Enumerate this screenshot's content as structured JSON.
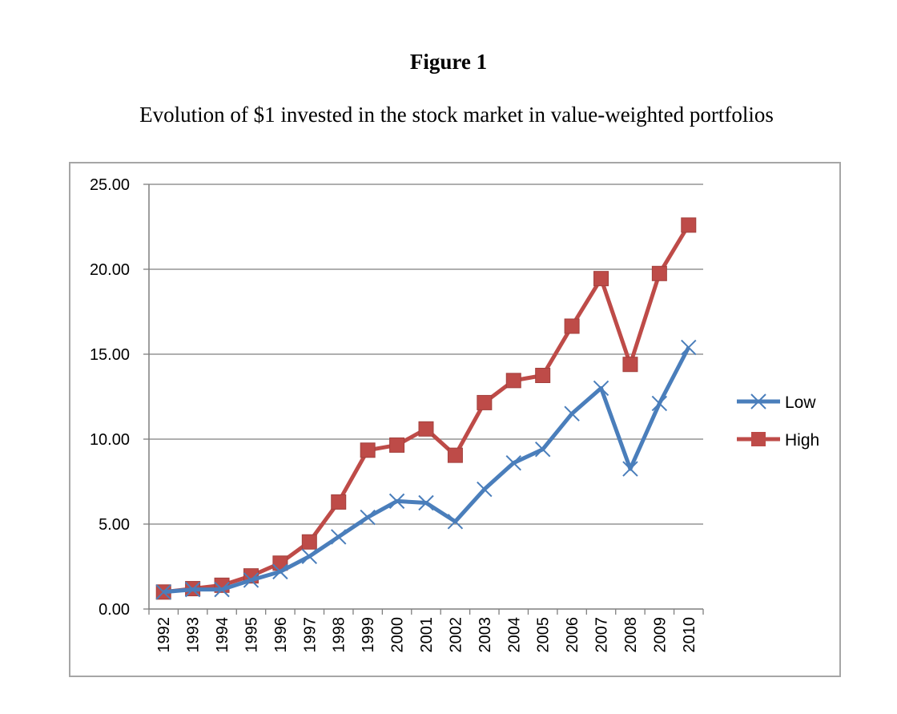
{
  "figure": {
    "title": "Figure 1",
    "subtitle": "Evolution of $1 invested in the stock market in value-weighted portfolios"
  },
  "chart_data": {
    "type": "line",
    "title": "Evolution of $1 invested in the stock market in value-weighted portfolios",
    "xlabel": "",
    "ylabel": "",
    "categories": [
      "1992",
      "1993",
      "1994",
      "1995",
      "1996",
      "1997",
      "1998",
      "1999",
      "2000",
      "2001",
      "2002",
      "2003",
      "2004",
      "2005",
      "2006",
      "2007",
      "2008",
      "2009",
      "2010"
    ],
    "ylim": [
      0,
      25
    ],
    "yticks": [
      "0.00",
      "5.00",
      "10.00",
      "15.00",
      "20.00",
      "25.00"
    ],
    "grid": true,
    "legend_position": "right",
    "series": [
      {
        "name": "Low",
        "color": "#4a7ebb",
        "marker": "x",
        "values": [
          1.0,
          1.15,
          1.15,
          1.7,
          2.2,
          3.1,
          4.25,
          5.4,
          6.35,
          6.25,
          5.15,
          7.05,
          8.6,
          9.4,
          11.5,
          13.0,
          8.25,
          12.1,
          15.4
        ]
      },
      {
        "name": "High",
        "color": "#be4b48",
        "marker": "square",
        "values": [
          1.0,
          1.2,
          1.4,
          1.95,
          2.7,
          3.95,
          6.3,
          9.35,
          9.65,
          10.6,
          9.05,
          12.15,
          13.45,
          13.75,
          16.65,
          19.45,
          14.4,
          19.75,
          22.6
        ]
      }
    ]
  }
}
